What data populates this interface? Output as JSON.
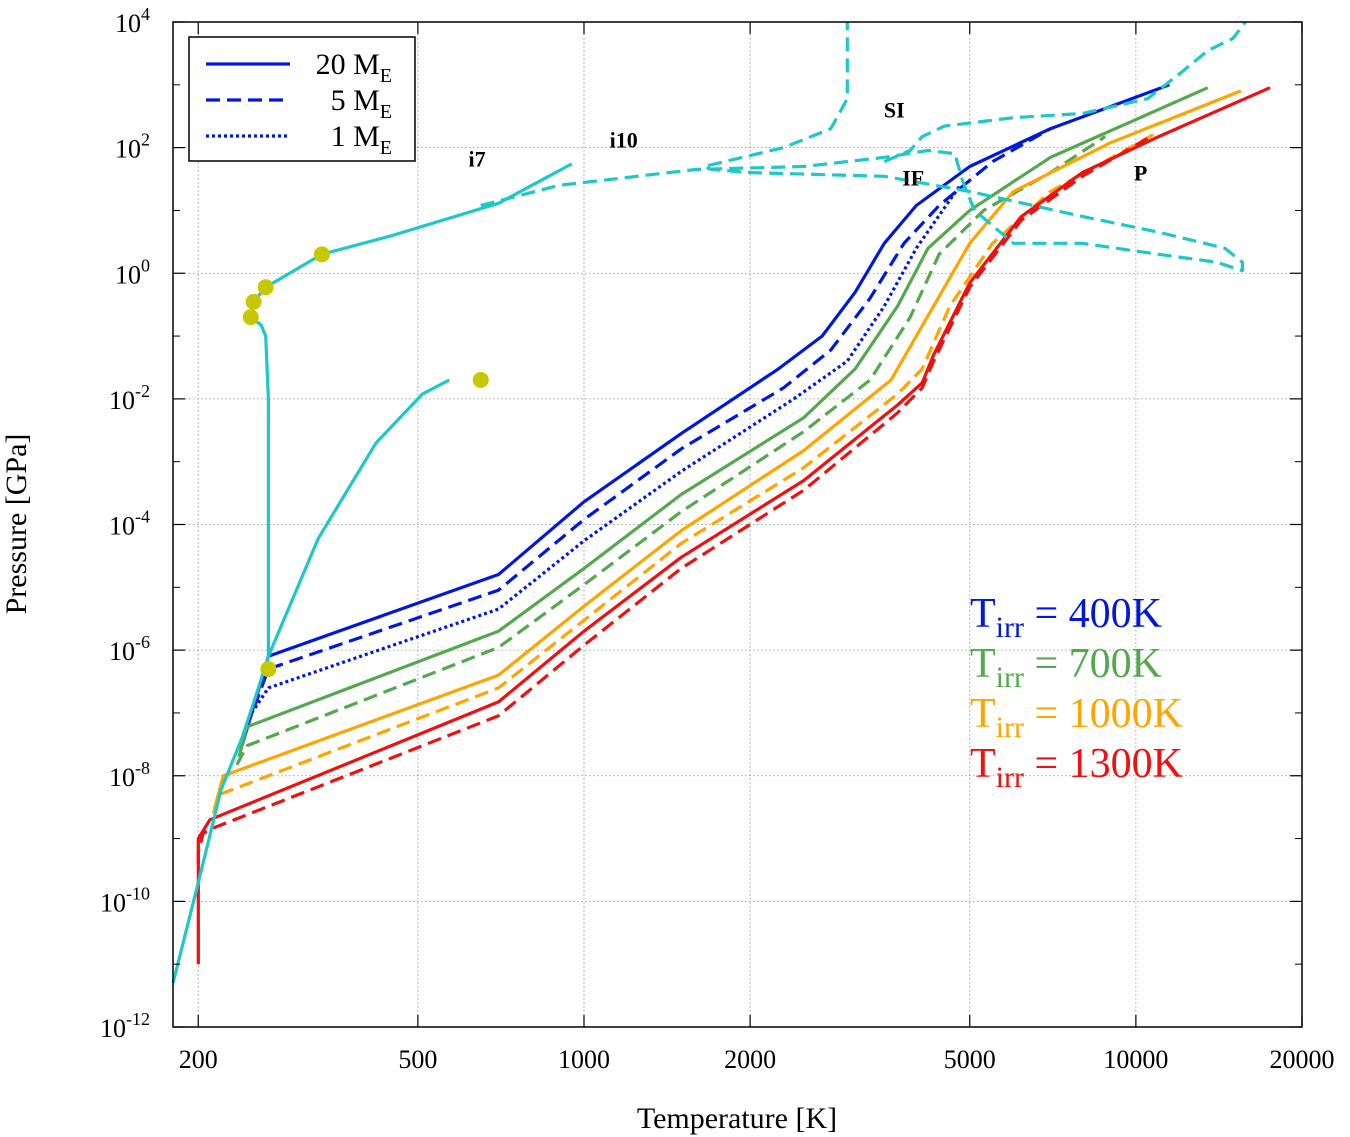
{
  "chart_data": {
    "type": "line",
    "xlabel": "Temperature [K]",
    "ylabel": "Pressure [GPa]",
    "x_scale": "log",
    "y_scale": "log",
    "xlim": [
      180,
      20000
    ],
    "ylim": [
      1e-12,
      10000
    ],
    "grid": true,
    "x_ticks": [
      {
        "value": 200,
        "label": "200"
      },
      {
        "value": 500,
        "label": "500"
      },
      {
        "value": 1000,
        "label": "1000"
      },
      {
        "value": 2000,
        "label": "2000"
      },
      {
        "value": 5000,
        "label": "5000"
      },
      {
        "value": 10000,
        "label": "10000"
      },
      {
        "value": 20000,
        "label": "20000"
      }
    ],
    "y_ticks": [
      {
        "exp": -12,
        "base": "10",
        "sup": "-12"
      },
      {
        "exp": -10,
        "base": "10",
        "sup": "-10"
      },
      {
        "exp": -8,
        "base": "10",
        "sup": "-8"
      },
      {
        "exp": -6,
        "base": "10",
        "sup": "-6"
      },
      {
        "exp": -4,
        "base": "10",
        "sup": "-4"
      },
      {
        "exp": -2,
        "base": "10",
        "sup": "-2"
      },
      {
        "exp": 0,
        "base": "10",
        "sup": "0"
      },
      {
        "exp": 2,
        "base": "10",
        "sup": "2"
      },
      {
        "exp": 4,
        "base": "10",
        "sup": "4"
      }
    ],
    "legend": {
      "position": "top-left",
      "entries": [
        {
          "text": "20 M",
          "sub": "E",
          "dash": "solid"
        },
        {
          "text": "5 M",
          "sub": "E",
          "dash": "dashed"
        },
        {
          "text": "1 M",
          "sub": "E",
          "dash": "dotted"
        }
      ]
    },
    "colors": {
      "400": "#0018dc",
      "700": "#55a84e",
      "1000": "#ffa500",
      "1300": "#ee1111",
      "phase": "#1ec8c8",
      "marker": "#c8c800"
    },
    "tirr_labels": [
      {
        "base": "T",
        "sub": "irr",
        "value": " = 400K",
        "color": "#0018dc"
      },
      {
        "base": "T",
        "sub": "irr",
        "value": " = 700K",
        "color": "#55a84e"
      },
      {
        "base": "T",
        "sub": "irr",
        "value": " = 1000K",
        "color": "#ffa500"
      },
      {
        "base": "T",
        "sub": "irr",
        "value": " = 1300K",
        "color": "#ee1111"
      }
    ],
    "region_labels": [
      {
        "text": "i7",
        "T": 640,
        "P": 50
      },
      {
        "text": "i10",
        "T": 1180,
        "P": 100
      },
      {
        "text": "SI",
        "T": 3650,
        "P": 300
      },
      {
        "text": "IF",
        "T": 3950,
        "P": 25
      },
      {
        "text": "P",
        "T": 10200,
        "P": 30
      }
    ],
    "series": [
      {
        "name": "Tirr=400K, 20 ME",
        "color": "#0018dc",
        "dash": "solid",
        "points": [
          [
            240,
            3e-08
          ],
          [
            268,
            8e-07
          ],
          [
            700,
            1.6e-05
          ],
          [
            1000,
            0.00023
          ],
          [
            1500,
            0.0028
          ],
          [
            2250,
            0.03
          ],
          [
            2700,
            0.1
          ],
          [
            3100,
            0.5
          ],
          [
            3500,
            3
          ],
          [
            4000,
            12
          ],
          [
            5000,
            50
          ],
          [
            7000,
            200
          ],
          [
            11500,
            1000
          ]
        ]
      },
      {
        "name": "Tirr=400K, 5 ME",
        "color": "#0018dc",
        "dash": "dashed",
        "points": [
          [
            245,
            6e-08
          ],
          [
            268,
            5e-07
          ],
          [
            700,
            9e-06
          ],
          [
            1000,
            0.00012
          ],
          [
            1500,
            0.0016
          ],
          [
            2300,
            0.015
          ],
          [
            2800,
            0.06
          ],
          [
            3300,
            0.4
          ],
          [
            3800,
            3
          ],
          [
            4400,
            12
          ],
          [
            5500,
            60
          ],
          [
            7000,
            200
          ]
        ]
      },
      {
        "name": "Tirr=400K, 1 ME",
        "color": "#0018dc",
        "dash": "dotted",
        "points": [
          [
            250,
            1e-07
          ],
          [
            268,
            2.5e-07
          ],
          [
            700,
            4.5e-06
          ],
          [
            1000,
            5.5e-05
          ],
          [
            1500,
            0.0007
          ],
          [
            2400,
            0.01
          ],
          [
            3000,
            0.04
          ],
          [
            3500,
            0.3
          ],
          [
            4000,
            2.5
          ],
          [
            4800,
            25
          ]
        ]
      },
      {
        "name": "Tirr=700K, 20 ME",
        "color": "#55a84e",
        "dash": "solid",
        "points": [
          [
            237,
            2e-08
          ],
          [
            245,
            6e-08
          ],
          [
            700,
            2e-06
          ],
          [
            1000,
            2e-05
          ],
          [
            1500,
            0.0003
          ],
          [
            2500,
            0.005
          ],
          [
            3100,
            0.03
          ],
          [
            3700,
            0.3
          ],
          [
            4200,
            2.5
          ],
          [
            5000,
            10
          ],
          [
            7000,
            70
          ],
          [
            13500,
            900
          ]
        ]
      },
      {
        "name": "Tirr=700K, 5 ME",
        "color": "#55a84e",
        "dash": "dashed",
        "points": [
          [
            235,
            1.5e-08
          ],
          [
            245,
            3e-08
          ],
          [
            700,
            1.1e-06
          ],
          [
            1000,
            1.1e-05
          ],
          [
            1500,
            0.00016
          ],
          [
            2500,
            0.003
          ],
          [
            3300,
            0.02
          ],
          [
            3900,
            0.2
          ],
          [
            4400,
            2
          ],
          [
            5300,
            10
          ],
          [
            7000,
            40
          ],
          [
            8800,
            150
          ]
        ]
      },
      {
        "name": "Tirr=1000K, 20 ME",
        "color": "#ffa500",
        "dash": "solid",
        "points": [
          [
            214,
            3e-09
          ],
          [
            222,
            1e-08
          ],
          [
            700,
            4e-07
          ],
          [
            1000,
            5e-06
          ],
          [
            1500,
            8e-05
          ],
          [
            2500,
            0.0015
          ],
          [
            3600,
            0.02
          ],
          [
            4300,
            0.3
          ],
          [
            5000,
            3
          ],
          [
            6000,
            20
          ],
          [
            9000,
            120
          ],
          [
            15500,
            800
          ]
        ]
      },
      {
        "name": "Tirr=1000K, 5 ME",
        "color": "#ffa500",
        "dash": "dashed",
        "points": [
          [
            213,
            2.5e-09
          ],
          [
            218,
            5e-09
          ],
          [
            700,
            2.5e-07
          ],
          [
            1000,
            3e-06
          ],
          [
            1500,
            5e-05
          ],
          [
            2500,
            0.0008
          ],
          [
            3700,
            0.012
          ],
          [
            4100,
            0.03
          ],
          [
            4600,
            0.3
          ],
          [
            5500,
            3
          ],
          [
            7000,
            20
          ],
          [
            11000,
            180
          ]
        ]
      },
      {
        "name": "Tirr=1300K, 20 ME",
        "color": "#ee1111",
        "dash": "solid",
        "points": [
          [
            200,
            1e-11
          ],
          [
            200,
            1e-09
          ],
          [
            210,
            2e-09
          ],
          [
            700,
            1.5e-07
          ],
          [
            1000,
            2e-06
          ],
          [
            1500,
            3e-05
          ],
          [
            2500,
            0.0005
          ],
          [
            3700,
            0.008
          ],
          [
            4100,
            0.018
          ],
          [
            4300,
            0.05
          ],
          [
            5000,
            0.7
          ],
          [
            6200,
            8
          ],
          [
            8000,
            40
          ],
          [
            11000,
            150
          ],
          [
            17500,
            900
          ]
        ]
      },
      {
        "name": "Tirr=1300K, 5 ME",
        "color": "#ee1111",
        "dash": "dashed",
        "points": [
          [
            200,
            4e-10
          ],
          [
            200,
            6e-10
          ],
          [
            204,
            1.2e-09
          ],
          [
            210,
            1.4e-09
          ],
          [
            700,
            9e-08
          ],
          [
            1000,
            1.2e-06
          ],
          [
            1500,
            2e-05
          ],
          [
            2500,
            0.00035
          ],
          [
            3700,
            0.006
          ],
          [
            4100,
            0.015
          ],
          [
            4300,
            0.04
          ],
          [
            5000,
            0.6
          ],
          [
            6200,
            7
          ],
          [
            8000,
            35
          ],
          [
            10500,
            140
          ]
        ]
      },
      {
        "name": "adiabat",
        "color": "#1ec8c8",
        "dash": "solid",
        "points": [
          [
            180,
            5e-12
          ],
          [
            200,
            2e-10
          ],
          [
            220,
            6e-09
          ],
          [
            240,
            4e-08
          ],
          [
            255,
            2e-07
          ],
          [
            268,
            8e-07
          ],
          [
            330,
            6e-05
          ],
          [
            420,
            0.002
          ],
          [
            510,
            0.012
          ],
          [
            570,
            0.02
          ]
        ]
      },
      {
        "name": "melting curve",
        "color": "#1ec8c8",
        "dash": "solid",
        "points": [
          [
            268,
            8e-07
          ],
          [
            268,
            0.01
          ],
          [
            265,
            0.1
          ],
          [
            260,
            0.15
          ],
          [
            249,
            0.2
          ],
          [
            252,
            0.35
          ],
          [
            265,
            0.6
          ],
          [
            335,
            2
          ],
          [
            450,
            4
          ],
          [
            700,
            13
          ],
          [
            950,
            55
          ]
        ]
      },
      {
        "name": "phase boundary i7-i10",
        "color": "#1ec8c8",
        "dash": "dashed",
        "points": [
          [
            650,
            12
          ],
          [
            900,
            25
          ],
          [
            1600,
            45
          ],
          [
            2500,
            50
          ],
          [
            3500,
            70
          ],
          [
            4200,
            90
          ],
          [
            4700,
            80
          ],
          [
            4850,
            30
          ],
          [
            5100,
            10
          ],
          [
            6000,
            3
          ],
          [
            8000,
            3
          ],
          [
            11000,
            2
          ],
          [
            14000,
            1.5
          ],
          [
            15600,
            1.1
          ],
          [
            15600,
            1.5
          ],
          [
            14500,
            2.5
          ],
          [
            11000,
            4.5
          ],
          [
            8000,
            8
          ],
          [
            5000,
            20
          ],
          [
            3500,
            35
          ],
          [
            2000,
            40
          ],
          [
            1700,
            45
          ],
          [
            1650,
            50
          ],
          [
            1800,
            60
          ],
          [
            2300,
            100
          ],
          [
            2800,
            200
          ],
          [
            3000,
            600
          ],
          [
            3000,
            3000
          ],
          [
            3000,
            10000
          ]
        ]
      },
      {
        "name": "phase boundary SI",
        "color": "#1ec8c8",
        "dash": "dashed",
        "points": [
          [
            3500,
            60
          ],
          [
            3900,
            90
          ],
          [
            4100,
            150
          ],
          [
            4500,
            220
          ],
          [
            6000,
            300
          ],
          [
            8000,
            350
          ],
          [
            10500,
            600
          ],
          [
            12000,
            1500
          ],
          [
            13500,
            3500
          ],
          [
            15000,
            5500
          ],
          [
            15800,
            10000
          ]
        ]
      }
    ],
    "markers": [
      {
        "T": 249,
        "P": 0.2
      },
      {
        "T": 252,
        "P": 0.35
      },
      {
        "T": 265,
        "P": 0.6
      },
      {
        "T": 335,
        "P": 2
      },
      {
        "T": 650,
        "P": 0.02
      },
      {
        "T": 268,
        "P": 5e-07
      }
    ]
  }
}
